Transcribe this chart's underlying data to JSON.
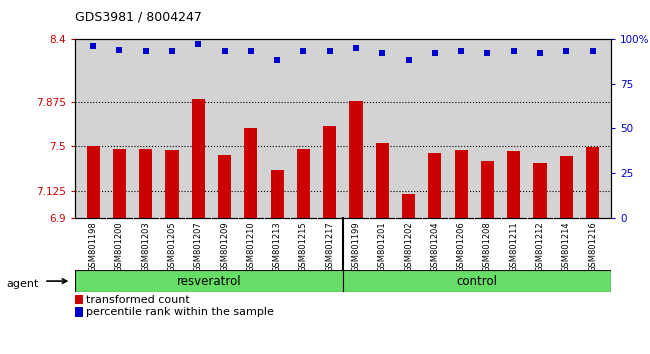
{
  "title": "GDS3981 / 8004247",
  "samples": [
    "GSM801198",
    "GSM801200",
    "GSM801203",
    "GSM801205",
    "GSM801207",
    "GSM801209",
    "GSM801210",
    "GSM801213",
    "GSM801215",
    "GSM801217",
    "GSM801199",
    "GSM801201",
    "GSM801202",
    "GSM801204",
    "GSM801206",
    "GSM801208",
    "GSM801211",
    "GSM801212",
    "GSM801214",
    "GSM801216"
  ],
  "bar_values": [
    7.5,
    7.48,
    7.48,
    7.47,
    7.9,
    7.43,
    7.65,
    7.3,
    7.48,
    7.67,
    7.88,
    7.53,
    7.1,
    7.44,
    7.47,
    7.38,
    7.46,
    7.36,
    7.42,
    7.49
  ],
  "percentile_values": [
    96,
    94,
    93,
    93,
    97,
    93,
    93,
    88,
    93,
    93,
    95,
    92,
    88,
    92,
    93,
    92,
    93,
    92,
    93,
    93
  ],
  "resveratrol_count": 10,
  "control_count": 10,
  "ylim_left": [
    6.9,
    8.4
  ],
  "ylim_right": [
    0,
    100
  ],
  "yticks_left": [
    6.9,
    7.125,
    7.5,
    7.875,
    8.4
  ],
  "yticks_right": [
    0,
    25,
    50,
    75,
    100
  ],
  "bar_color": "#cc0000",
  "dot_color": "#0000cc",
  "bar_bottom": 6.9,
  "resveratrol_color": "#66dd66",
  "control_color": "#66dd66",
  "agent_label": "agent",
  "xlabel_resveratrol": "resveratrol",
  "xlabel_control": "control",
  "legend_bar_label": "transformed count",
  "legend_dot_label": "percentile rank within the sample",
  "background_axes": "#d3d3d3",
  "dotted_line_color": "#000000",
  "tick_bg_color": "#cccccc"
}
